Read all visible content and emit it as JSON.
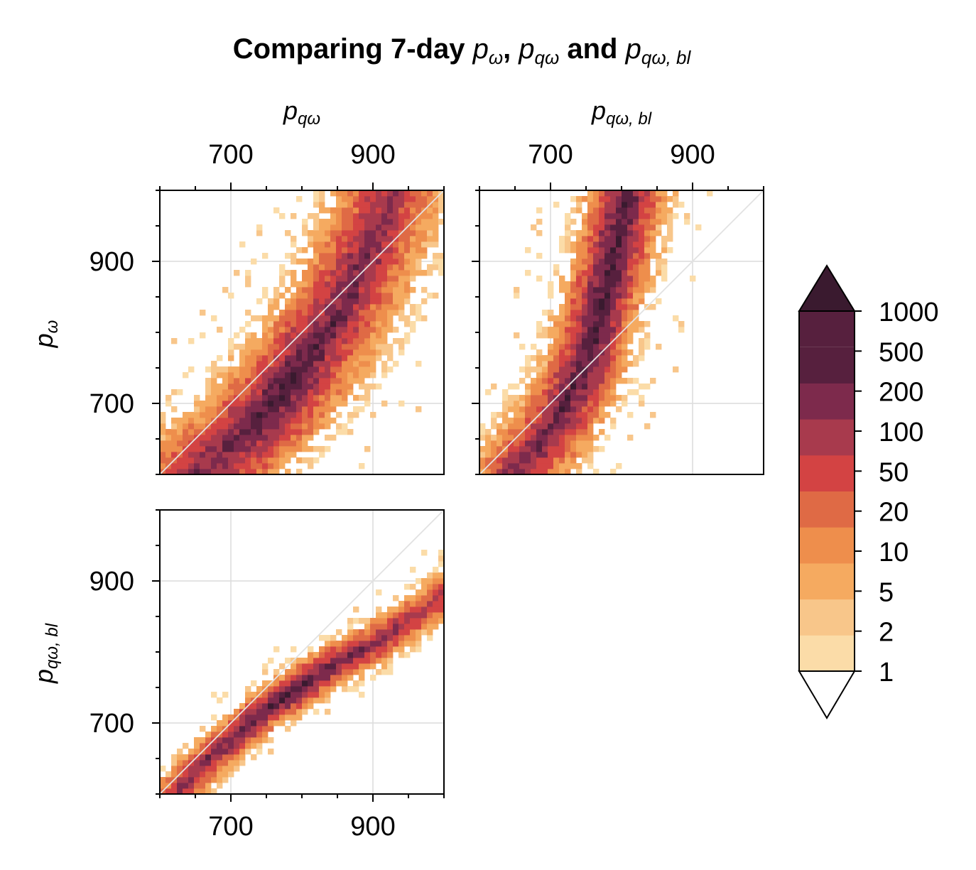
{
  "title": {
    "prefix": "Comparing 7-day ",
    "sep1": ", ",
    "conj": " and "
  },
  "symbols": {
    "p": "p",
    "omega": "ω",
    "q_omega": "qω",
    "q_omega_bl": "qω, bl"
  },
  "chart_data": [
    {
      "type": "heatmap",
      "panel": "top-left",
      "x_variable": "p_qω",
      "y_variable": "p_ω",
      "xlim": [
        600,
        1000
      ],
      "ylim": [
        600,
        1000
      ],
      "xticks": [
        700,
        900
      ],
      "yticks": [
        700,
        900
      ],
      "x_tick_labels": [
        "700",
        "900"
      ],
      "y_tick_labels": [
        "700",
        "900"
      ],
      "x_axis_position": "top",
      "grid": true,
      "reference_line": "1:1",
      "ridge": [
        [
          645,
          600
        ],
        [
          700,
          640
        ],
        [
          750,
          690
        ],
        [
          800,
          750
        ],
        [
          850,
          820
        ],
        [
          900,
          920
        ],
        [
          930,
          1000
        ]
      ],
      "ridge_width": 40
    },
    {
      "type": "heatmap",
      "panel": "top-right",
      "x_variable": "p_qω,bl",
      "y_variable": "p_ω",
      "xlim": [
        600,
        1000
      ],
      "ylim": [
        600,
        1000
      ],
      "xticks": [
        700,
        900
      ],
      "yticks": [
        700,
        900
      ],
      "x_tick_labels": [
        "700",
        "900"
      ],
      "y_tick_labels": [
        "",
        ""
      ],
      "x_axis_position": "top",
      "grid": true,
      "reference_line": "1:1",
      "ridge": [
        [
          645,
          600
        ],
        [
          690,
          650
        ],
        [
          720,
          700
        ],
        [
          750,
          760
        ],
        [
          775,
          850
        ],
        [
          795,
          930
        ],
        [
          810,
          1000
        ]
      ],
      "ridge_width": 30
    },
    {
      "type": "heatmap",
      "panel": "bottom-left",
      "x_variable": "p_qω",
      "y_variable": "p_qω,bl",
      "xlim": [
        600,
        1000
      ],
      "ylim": [
        600,
        1000
      ],
      "xticks": [
        700,
        900
      ],
      "yticks": [
        700,
        900
      ],
      "x_tick_labels": [
        "700",
        "900"
      ],
      "y_tick_labels": [
        "700",
        "900"
      ],
      "x_axis_position": "bottom",
      "grid": true,
      "reference_line": "1:1",
      "ridge": [
        [
          620,
          600
        ],
        [
          680,
          660
        ],
        [
          750,
          720
        ],
        [
          800,
          752
        ],
        [
          850,
          785
        ],
        [
          900,
          810
        ],
        [
          960,
          850
        ],
        [
          1000,
          880
        ]
      ],
      "ridge_width": 16
    }
  ],
  "colorbar": {
    "levels": [
      "1",
      "2",
      "5",
      "10",
      "20",
      "50",
      "100",
      "200",
      "500",
      "1000"
    ],
    "colors": [
      "#fbdca8",
      "#f8c68a",
      "#f5aa60",
      "#ee8e4c",
      "#df6a45",
      "#d34343",
      "#a83a4d",
      "#7d2a4c",
      "#57203e",
      "#3a1a2f"
    ],
    "extend": "both"
  }
}
